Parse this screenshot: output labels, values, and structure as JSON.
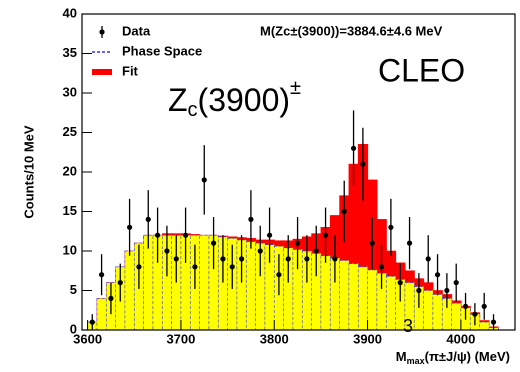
{
  "chart_data": {
    "type": "histogram",
    "y_label": "Counts/10 MeV",
    "x_label": {
      "main": "M",
      "sub": "max",
      "rest": "(π±J/ψ) (MeV)"
    },
    "annotation": "M(Zc±(3900))=3884.6±4.6 MeV",
    "overlay_title": {
      "main": "Z",
      "sub": "c",
      "rest": "(3900)",
      "sup": "±"
    },
    "overlay_label": "CLEO",
    "page_number": "3",
    "legend": "upper left",
    "bins": [
      3600,
      3610,
      3620,
      3630,
      3640,
      3650,
      3660,
      3670,
      3680,
      3690,
      3700,
      3710,
      3720,
      3730,
      3740,
      3750,
      3760,
      3770,
      3780,
      3790,
      3800,
      3810,
      3820,
      3830,
      3840,
      3850,
      3860,
      3870,
      3880,
      3890,
      3900,
      3910,
      3920,
      3930,
      3940,
      3950,
      3960,
      3970,
      3980,
      3990,
      4000,
      4010,
      4020,
      4030,
      4040
    ],
    "series": [
      {
        "name": "Fit",
        "color": "#ff0000",
        "style": "filled",
        "values": [
          1,
          4,
          6,
          8,
          10,
          11,
          12,
          12,
          12.2,
          12.2,
          12.2,
          12.1,
          12,
          12,
          11.9,
          11.8,
          11.7,
          11.6,
          11.4,
          11.4,
          11.3,
          11.3,
          11.5,
          11.8,
          12.2,
          13,
          14.5,
          17,
          21,
          23.5,
          19,
          14,
          10,
          8.5,
          7.5,
          6.5,
          6,
          5,
          4.5,
          3.7,
          3,
          2.2,
          1.2,
          0.4
        ]
      },
      {
        "name": "Phase Space",
        "color": "#ffff00",
        "line_color": "#3333ff",
        "style": "filled-dashed",
        "values": [
          1,
          4,
          6,
          8,
          10,
          11,
          12,
          12,
          12,
          12,
          12,
          12,
          12,
          12,
          11.8,
          11.6,
          11.4,
          11.2,
          11,
          10.8,
          10.6,
          10.4,
          10.2,
          10,
          9.7,
          9.4,
          9.1,
          8.8,
          8.4,
          8,
          7.6,
          7.2,
          6.8,
          6.4,
          6,
          5.5,
          5,
          4.5,
          4,
          3.4,
          2.8,
          2,
          1,
          0.3
        ]
      },
      {
        "name": "Data",
        "color": "#000000",
        "style": "points",
        "values": [
          1,
          7,
          4,
          6,
          13,
          8,
          14,
          12,
          10,
          9,
          12,
          8,
          19,
          11,
          9,
          8,
          9,
          14,
          10,
          12,
          7,
          9,
          11,
          9,
          10,
          12,
          9,
          15,
          23,
          21,
          11,
          8,
          13,
          6,
          11,
          5,
          9,
          7,
          5,
          6,
          3,
          2,
          3,
          1
        ],
        "errors": [
          1,
          2.6,
          2,
          2.4,
          3.6,
          2.8,
          3.7,
          3.5,
          3.2,
          3,
          3.5,
          2.8,
          4.4,
          3.3,
          3,
          2.8,
          3,
          3.7,
          3.2,
          3.5,
          2.6,
          3,
          3.3,
          3,
          3.2,
          3.5,
          3,
          3.9,
          4.8,
          4.6,
          3.3,
          2.8,
          3.6,
          2.4,
          3.3,
          2.2,
          3,
          2.6,
          2.2,
          2.4,
          1.7,
          1.4,
          1.7,
          1
        ]
      }
    ],
    "xlim": [
      3594,
      4058
    ],
    "xticks": [
      3600,
      3700,
      3800,
      3900,
      4000
    ],
    "ylim": [
      0,
      40
    ],
    "yticks": [
      0,
      5,
      10,
      15,
      20,
      25,
      30,
      35,
      40
    ]
  }
}
